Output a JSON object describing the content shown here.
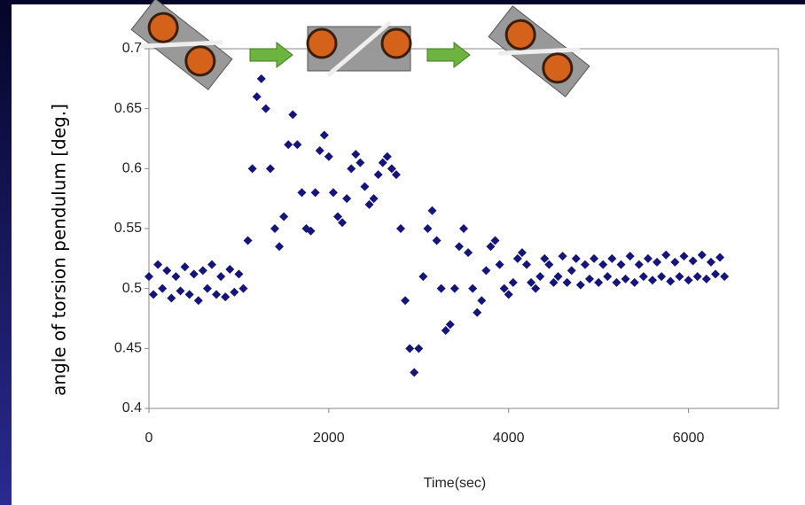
{
  "chart_data": {
    "type": "scatter",
    "xlabel": "Time(sec)",
    "ylabel": "angle of torsion pendulum [deg.]",
    "xlim": [
      0,
      7000
    ],
    "xticks": [
      0,
      2000,
      4000,
      6000
    ],
    "ylim": [
      0.4,
      0.7
    ],
    "yticks": [
      0.4,
      0.45,
      0.5,
      0.55,
      0.6,
      0.65,
      0.7
    ],
    "color": "#14147a",
    "x": [
      0,
      50,
      100,
      150,
      200,
      250,
      300,
      350,
      400,
      450,
      500,
      550,
      600,
      650,
      700,
      750,
      800,
      850,
      900,
      950,
      1000,
      1050,
      1100,
      1150,
      1200,
      1250,
      1300,
      1350,
      1400,
      1450,
      1500,
      1550,
      1600,
      1650,
      1700,
      1750,
      1800,
      1850,
      1900,
      1950,
      2000,
      2050,
      2100,
      2150,
      2200,
      2250,
      2300,
      2350,
      2400,
      2450,
      2500,
      2550,
      2600,
      2650,
      2700,
      2750,
      2800,
      2850,
      2900,
      2950,
      3000,
      3050,
      3100,
      3150,
      3200,
      3250,
      3300,
      3350,
      3400,
      3450,
      3500,
      3550,
      3600,
      3650,
      3700,
      3750,
      3800,
      3850,
      3900,
      3950,
      4000,
      4050,
      4100,
      4150,
      4200,
      4250,
      4300,
      4350,
      4400,
      4450,
      4500,
      4550,
      4600,
      4650,
      4700,
      4750,
      4800,
      4850,
      4900,
      4950,
      5000,
      5050,
      5100,
      5150,
      5200,
      5250,
      5300,
      5350,
      5400,
      5450,
      5500,
      5550,
      5600,
      5650,
      5700,
      5750,
      5800,
      5850,
      5900,
      5950,
      6000,
      6050,
      6100,
      6150,
      6200,
      6250,
      6300,
      6350,
      6400
    ],
    "values": [
      0.51,
      0.495,
      0.52,
      0.5,
      0.515,
      0.492,
      0.51,
      0.498,
      0.518,
      0.495,
      0.512,
      0.49,
      0.515,
      0.5,
      0.52,
      0.495,
      0.51,
      0.493,
      0.516,
      0.497,
      0.512,
      0.5,
      0.54,
      0.6,
      0.66,
      0.675,
      0.65,
      0.6,
      0.55,
      0.535,
      0.56,
      0.62,
      0.645,
      0.62,
      0.58,
      0.55,
      0.548,
      0.58,
      0.615,
      0.628,
      0.61,
      0.58,
      0.56,
      0.555,
      0.575,
      0.6,
      0.612,
      0.605,
      0.585,
      0.57,
      0.575,
      0.595,
      0.605,
      0.61,
      0.6,
      0.595,
      0.55,
      0.49,
      0.45,
      0.43,
      0.45,
      0.51,
      0.55,
      0.565,
      0.54,
      0.5,
      0.465,
      0.47,
      0.5,
      0.535,
      0.55,
      0.53,
      0.5,
      0.48,
      0.49,
      0.515,
      0.535,
      0.54,
      0.52,
      0.5,
      0.495,
      0.505,
      0.525,
      0.53,
      0.52,
      0.505,
      0.5,
      0.51,
      0.525,
      0.52,
      0.505,
      0.51,
      0.527,
      0.505,
      0.515,
      0.525,
      0.503,
      0.52,
      0.508,
      0.525,
      0.505,
      0.52,
      0.51,
      0.525,
      0.505,
      0.52,
      0.508,
      0.527,
      0.505,
      0.52,
      0.51,
      0.525,
      0.507,
      0.522,
      0.51,
      0.528,
      0.506,
      0.522,
      0.51,
      0.527,
      0.507,
      0.523,
      0.51,
      0.528,
      0.508,
      0.522,
      0.512,
      0.526,
      0.51
    ]
  }
}
